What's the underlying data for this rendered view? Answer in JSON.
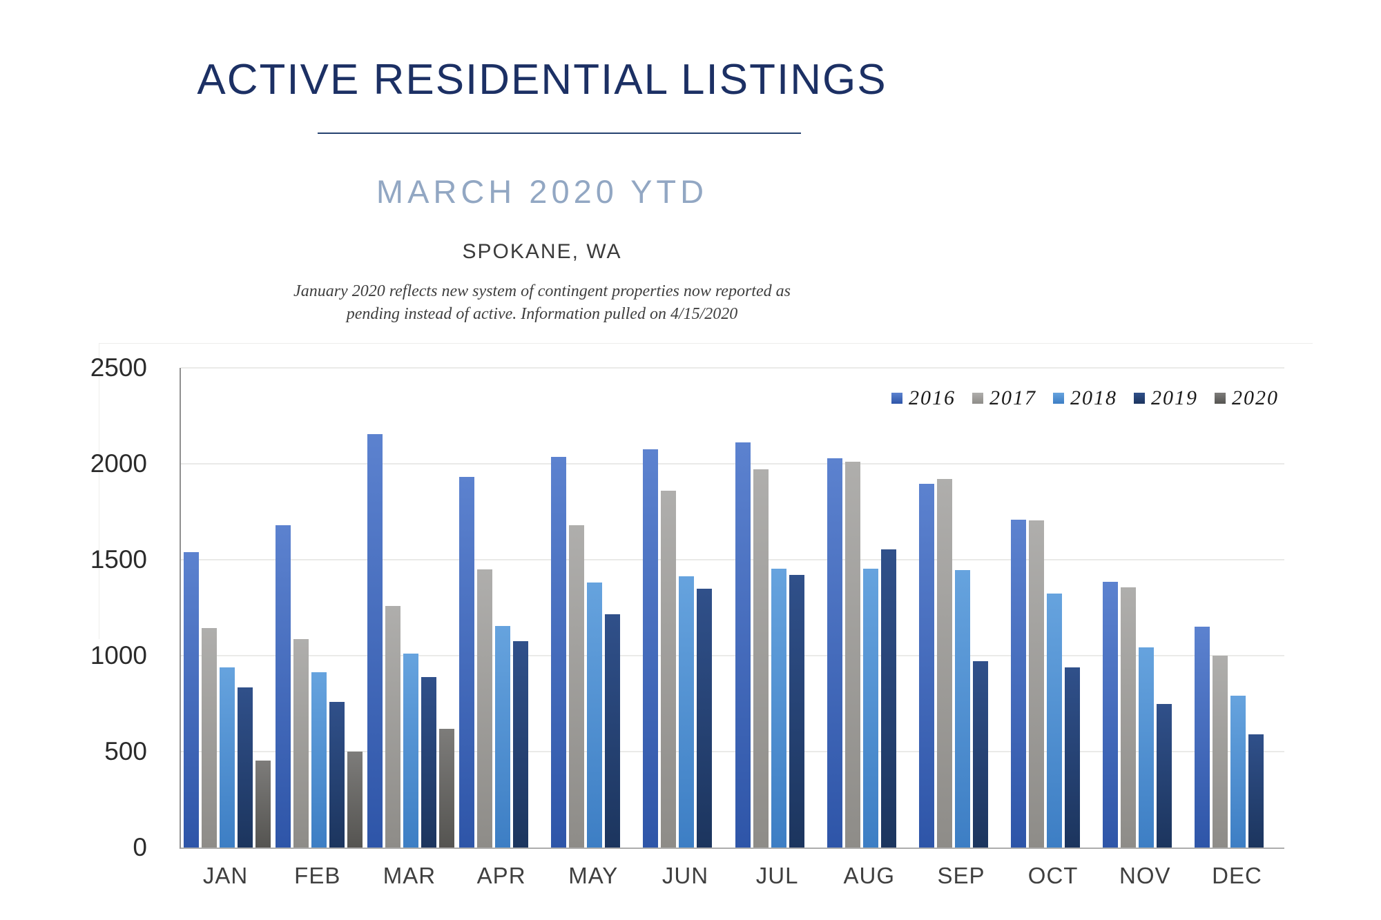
{
  "header": {
    "title": "ACTIVE RESIDENTIAL LISTINGS",
    "subtitle": "MARCH 2020 YTD",
    "location": "SPOKANE, WA",
    "note_line1": "January 2020 reflects new system of contingent properties now reported as",
    "note_line2": "pending instead of active.  Information pulled on 4/15/2020"
  },
  "colors": {
    "title_navy": "#1C3064",
    "subtitle_blue": "#92A7C3",
    "gridline": "#EAEAE8",
    "axis_line": "#8F8F8F"
  },
  "chart_data": {
    "type": "bar",
    "title": "Active Residential Listings by Month, Spokane WA",
    "xlabel": "",
    "ylabel": "",
    "ylim": [
      0,
      2500
    ],
    "yticks": [
      0,
      500,
      1000,
      1500,
      2000,
      2500
    ],
    "grid": true,
    "legend_position": "top-right",
    "categories": [
      "JAN",
      "FEB",
      "MAR",
      "APR",
      "MAY",
      "JUN",
      "JUL",
      "AUG",
      "SEP",
      "OCT",
      "NOV",
      "DEC"
    ],
    "series": [
      {
        "name": "2016",
        "legend_color": "#4472C4",
        "color_top": "#5C82CF",
        "color_bottom": "#2E55A8",
        "values": [
          1540,
          1680,
          2155,
          1930,
          2035,
          2075,
          2110,
          2030,
          1895,
          1710,
          1385,
          1150
        ]
      },
      {
        "name": "2017",
        "legend_color": "#AEADAC",
        "color_top": "#AFAEAC",
        "color_bottom": "#8E8C88",
        "values": [
          1145,
          1085,
          1260,
          1450,
          1680,
          1860,
          1970,
          2010,
          1920,
          1705,
          1355,
          1000
        ]
      },
      {
        "name": "2018",
        "legend_color": "#5B9BD5",
        "color_top": "#66A3DE",
        "color_bottom": "#3D7EC4",
        "values": [
          940,
          915,
          1010,
          1155,
          1380,
          1415,
          1455,
          1455,
          1445,
          1325,
          1045,
          790
        ]
      },
      {
        "name": "2019",
        "legend_color": "#24416F",
        "color_top": "#30508A",
        "color_bottom": "#1C355E",
        "values": [
          835,
          760,
          890,
          1075,
          1215,
          1350,
          1420,
          1555,
          970,
          940,
          750,
          590
        ]
      },
      {
        "name": "2020",
        "legend_color": "#6F6E6C",
        "color_top": "#7D7C7A",
        "color_bottom": "#555451",
        "values": [
          455,
          500,
          620,
          null,
          null,
          null,
          null,
          null,
          null,
          null,
          null,
          null
        ]
      }
    ]
  }
}
